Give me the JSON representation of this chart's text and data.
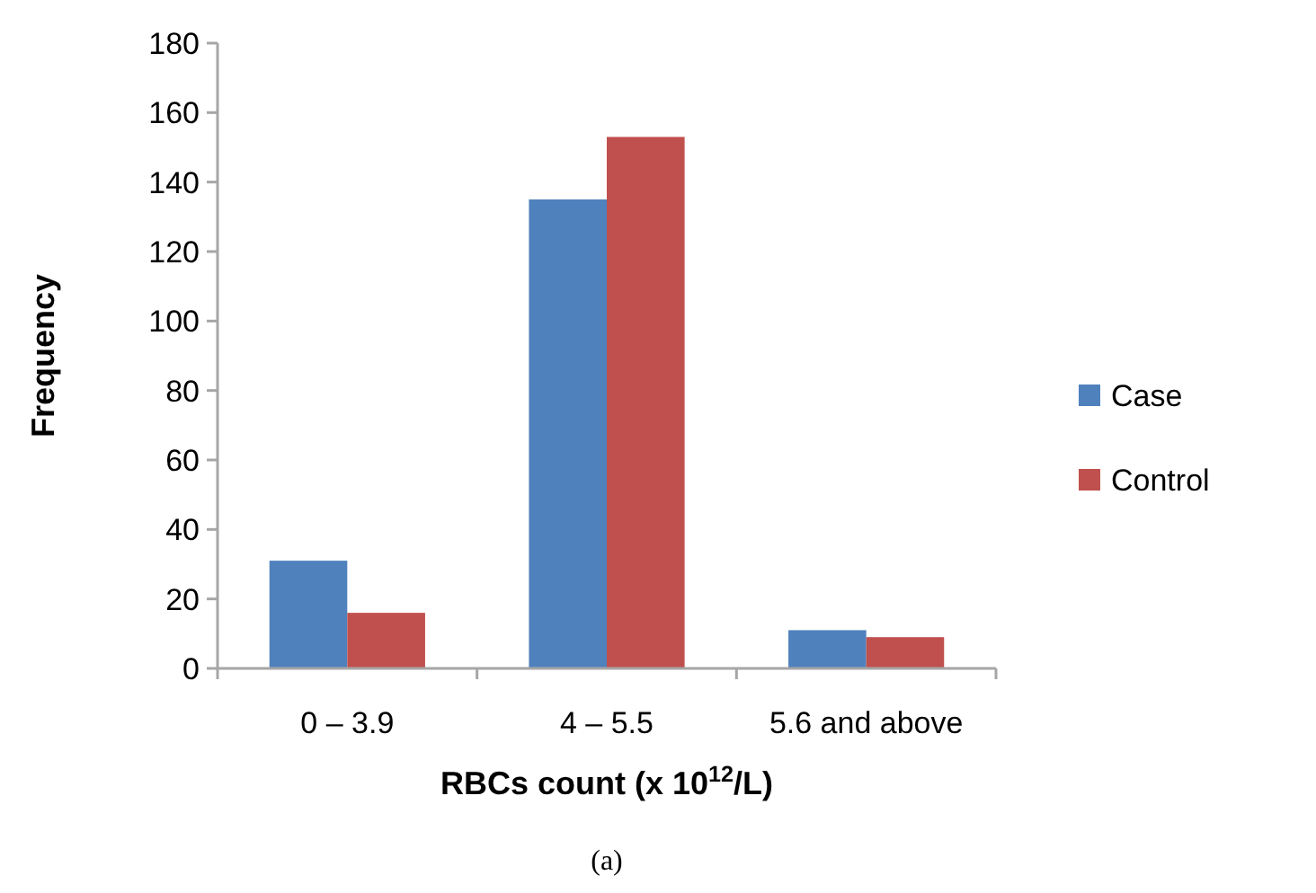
{
  "chart_data": {
    "type": "bar",
    "categories": [
      "0 – 3.9",
      "4 – 5.5",
      "5.6 and above"
    ],
    "series": [
      {
        "name": "Case",
        "color": "#4f81bd",
        "values": [
          31,
          135,
          11
        ]
      },
      {
        "name": "Control",
        "color": "#c0504d",
        "values": [
          16,
          153,
          9
        ]
      }
    ],
    "ylim": [
      0,
      180
    ],
    "yticks": [
      0,
      20,
      40,
      60,
      80,
      100,
      120,
      140,
      160,
      180
    ],
    "ylabel": "Frequency",
    "xlabel": "RBCs count (x 10$^{12}$/L)",
    "legend": "right",
    "grid": false,
    "annotations": [
      "(a)"
    ]
  }
}
